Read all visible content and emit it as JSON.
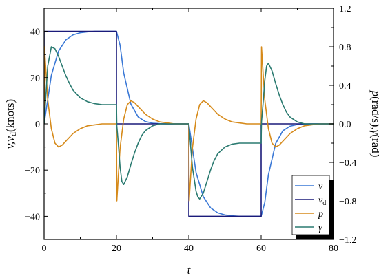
{
  "chart_data": {
    "type": "line",
    "xlabel": "t",
    "ylabel_left": "v,v_d(knots)",
    "ylabel_left_parts": {
      "main": "v,v",
      "sub": "d",
      "unit": "(knots)"
    },
    "ylabel_right": "p(rad/s),γ(rad)",
    "ylabel_right_parts": {
      "p": "p",
      "unit1": "(rad/s),",
      "g": "γ",
      "unit2": "(rad)"
    },
    "xlim": [
      0,
      80
    ],
    "ylim_left": [
      -50,
      50
    ],
    "ylim_right": [
      -1.2,
      1.2
    ],
    "x_ticks": [
      "0",
      "20",
      "40",
      "60",
      "80"
    ],
    "y_left_ticks": [
      "40",
      "20",
      "0",
      "−20",
      "−40"
    ],
    "y_right_ticks": [
      "1.2",
      "0.8",
      "0.4",
      "0.0",
      "−0.4",
      "−0.8",
      "−1.2"
    ],
    "grid": false,
    "legend_position": "bottom-right",
    "series": [
      {
        "name": "v",
        "axis": "left",
        "color": "#3a78d6",
        "x": [
          0,
          2,
          4,
          6,
          8,
          10,
          12,
          14,
          16,
          18,
          20,
          21,
          22,
          24,
          26,
          28,
          30,
          32,
          34,
          36,
          38,
          40,
          42,
          44,
          46,
          48,
          50,
          52,
          54,
          56,
          58,
          60,
          61,
          62,
          64,
          66,
          68,
          70,
          72,
          74,
          76,
          78,
          80
        ],
        "y": [
          0,
          21,
          31.5,
          36.3,
          38.5,
          39.4,
          39.8,
          40,
          40,
          40,
          40,
          34,
          22,
          8.5,
          3,
          1,
          0.3,
          0.1,
          0,
          0,
          0,
          0,
          -21,
          -31.5,
          -36.3,
          -38.5,
          -39.4,
          -39.8,
          -40,
          -40,
          -40,
          -40,
          -34,
          -22,
          -8.5,
          -3,
          -1,
          -0.3,
          -0.1,
          0,
          0,
          0,
          0
        ]
      },
      {
        "name": "v_d",
        "label_main": "v",
        "label_sub": "d",
        "axis": "left",
        "color": "#1a1a7a",
        "x": [
          0,
          0,
          20,
          20,
          40,
          40,
          60,
          60,
          80
        ],
        "y": [
          0,
          40,
          40,
          0,
          0,
          -40,
          -40,
          0,
          0
        ]
      },
      {
        "name": "p",
        "axis": "right",
        "color": "#d68a1a",
        "x": [
          0,
          0.1,
          0.5,
          1,
          2,
          3,
          4,
          5,
          6,
          8,
          10,
          12,
          14,
          16,
          18,
          19.9,
          20,
          20.1,
          20.5,
          21,
          22,
          23,
          24,
          25,
          26,
          28,
          30,
          32,
          34,
          36,
          38,
          39.9,
          40,
          40.1,
          40.5,
          41,
          42,
          43,
          44,
          45,
          46,
          48,
          50,
          52,
          54,
          56,
          58,
          59.9,
          60,
          60.1,
          60.5,
          61,
          62,
          63,
          64,
          65,
          66,
          68,
          70,
          72,
          74,
          76,
          78,
          80
        ],
        "y": [
          0,
          0.8,
          0.55,
          0.25,
          -0.05,
          -0.2,
          -0.24,
          -0.22,
          -0.18,
          -0.1,
          -0.05,
          -0.02,
          -0.01,
          0,
          0,
          0,
          0,
          -0.8,
          -0.55,
          -0.25,
          0.05,
          0.2,
          0.24,
          0.22,
          0.18,
          0.1,
          0.05,
          0.02,
          0.01,
          0,
          0,
          0,
          0,
          -0.8,
          -0.55,
          -0.25,
          0.05,
          0.2,
          0.24,
          0.22,
          0.18,
          0.1,
          0.05,
          0.02,
          0.01,
          0,
          0,
          0,
          0,
          0.8,
          0.55,
          0.25,
          -0.05,
          -0.2,
          -0.24,
          -0.22,
          -0.18,
          -0.1,
          -0.05,
          -0.02,
          -0.01,
          0,
          0,
          0
        ]
      },
      {
        "name": "γ",
        "axis": "right",
        "color": "#2a7a70",
        "x": [
          0,
          1,
          2,
          3,
          4,
          5,
          6,
          7,
          8,
          10,
          12,
          14,
          16,
          18,
          19.9,
          20,
          20.1,
          20.5,
          21,
          21.5,
          22,
          23,
          24,
          25,
          26,
          27,
          28,
          30,
          32,
          34,
          36,
          38,
          39.9,
          40,
          40.1,
          41,
          42,
          42.5,
          43,
          44,
          45,
          46,
          47,
          48,
          50,
          52,
          54,
          56,
          58,
          59.9,
          60,
          60.1,
          60.5,
          61,
          61.5,
          62,
          63,
          64,
          65,
          66,
          67,
          68,
          70,
          72,
          74,
          76,
          78,
          80
        ],
        "y": [
          0,
          0.6,
          0.8,
          0.78,
          0.7,
          0.6,
          0.5,
          0.42,
          0.35,
          0.27,
          0.23,
          0.21,
          0.2,
          0.2,
          0.2,
          0.2,
          -0.02,
          -0.2,
          -0.45,
          -0.6,
          -0.63,
          -0.55,
          -0.42,
          -0.3,
          -0.2,
          -0.12,
          -0.07,
          -0.02,
          0,
          0,
          0,
          0,
          0,
          0,
          -0.05,
          -0.45,
          -0.7,
          -0.76,
          -0.78,
          -0.72,
          -0.6,
          -0.48,
          -0.38,
          -0.31,
          -0.24,
          -0.21,
          -0.2,
          -0.2,
          -0.2,
          -0.2,
          -0.2,
          0.02,
          0.2,
          0.45,
          0.6,
          0.63,
          0.55,
          0.42,
          0.3,
          0.2,
          0.12,
          0.07,
          0.02,
          0,
          0,
          0,
          0,
          0
        ]
      }
    ]
  }
}
